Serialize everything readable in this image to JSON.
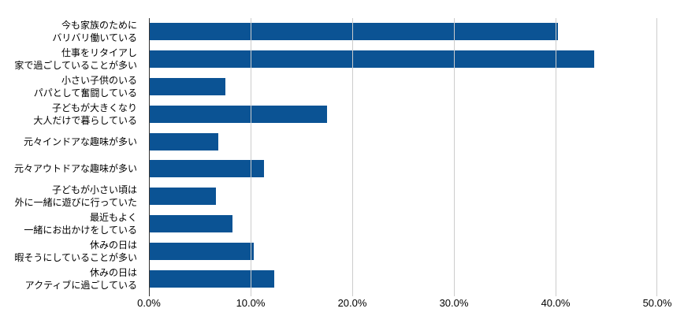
{
  "chart_data": {
    "type": "bar",
    "orientation": "horizontal",
    "title": "",
    "categories": [
      "今も家族のために\nバリバリ働いている",
      "仕事をリタイアし\n家で過ごしていることが多い",
      "小さい子供のいる\nパパとして奮闘している",
      "子どもが大きくなり\n大人だけで暮らしている",
      "元々インドアな趣味が多い",
      "元々アウトドアな趣味が多い",
      "子どもが小さい頃は\n外に一緒に遊びに行っていた",
      "最近もよく\n一緒にお出かけをしている",
      "休みの日は\n暇そうにしていることが多い",
      "休みの日は\nアクティブに過ごしている"
    ],
    "values": [
      40.2,
      43.8,
      7.5,
      17.5,
      6.8,
      11.3,
      6.6,
      8.2,
      10.3,
      12.3
    ],
    "value_unit": "%",
    "xlim": [
      0,
      50
    ],
    "x_tick_labels": [
      "0.0%",
      "10.0%",
      "20.0%",
      "30.0%",
      "40.0%",
      "50.0%"
    ],
    "grid": true,
    "legend": "none",
    "colors": {
      "bar": "#0b5394",
      "gridline": "#cccccc",
      "axis": "#333333",
      "text": "#000000",
      "background": "#ffffff"
    }
  }
}
